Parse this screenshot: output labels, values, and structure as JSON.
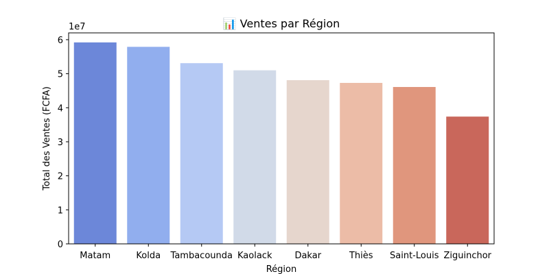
{
  "chart_data": {
    "type": "bar",
    "title": "📊 Ventes par Région",
    "xlabel": "Région",
    "ylabel": "Total des Ventes (FCFA)",
    "y_offset_label": "1e7",
    "categories": [
      "Matam",
      "Kolda",
      "Tambacounda",
      "Kaolack",
      "Dakar",
      "Thiès",
      "Saint-Louis",
      "Ziguinchor"
    ],
    "values": [
      59200000,
      57900000,
      53100000,
      51000000,
      48100000,
      47300000,
      46100000,
      37400000
    ],
    "ylim": [
      0,
      62000000
    ],
    "yticks": [
      0,
      10000000,
      20000000,
      30000000,
      40000000,
      50000000,
      60000000
    ],
    "ytick_labels": [
      "0",
      "1",
      "2",
      "3",
      "4",
      "5",
      "6"
    ],
    "colors": [
      "#6c87d9",
      "#91aeee",
      "#b5c9f4",
      "#d1dae8",
      "#e6d6cd",
      "#ecbca7",
      "#e0967d",
      "#c9675b"
    ],
    "grid": false,
    "legend": "none"
  }
}
